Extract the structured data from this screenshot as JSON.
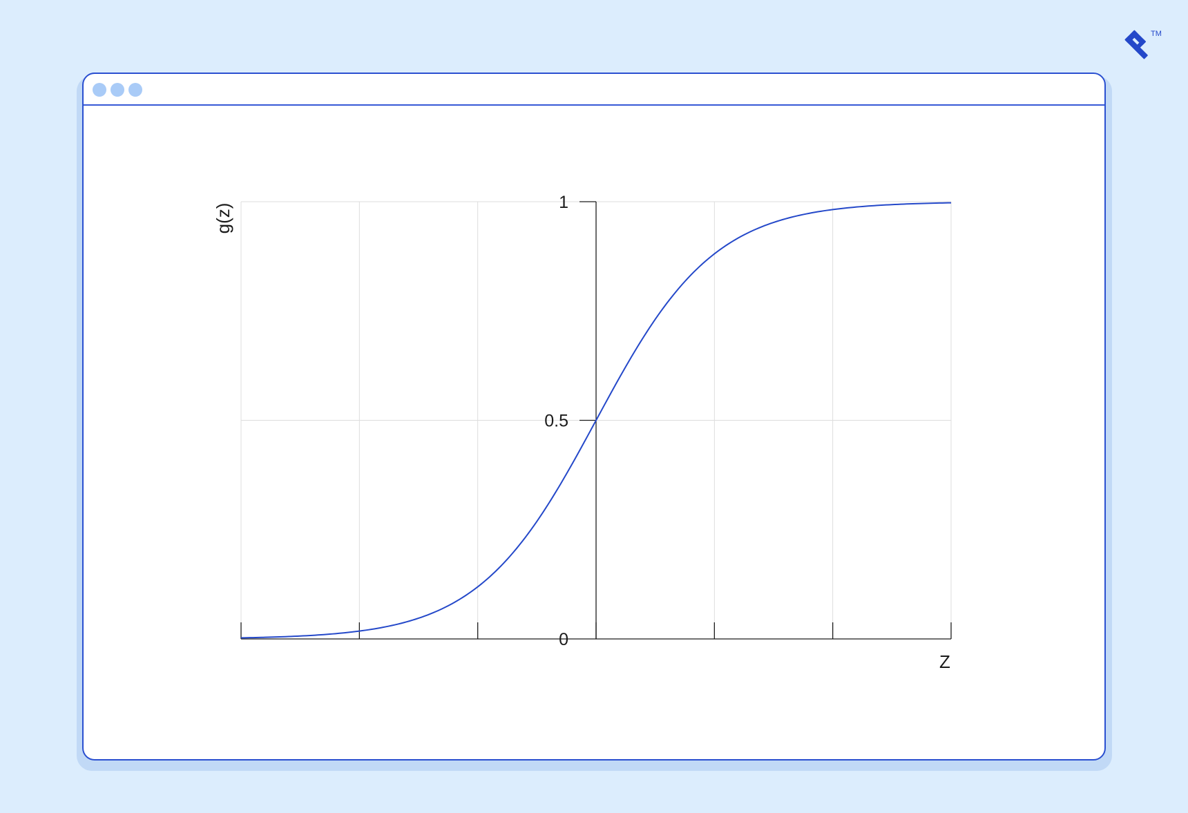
{
  "colors": {
    "background": "#dcedfd",
    "window_border": "#2a4fd0",
    "window_dots": "#a9cbf7",
    "curve": "#2448c9",
    "grid": "#dddddd",
    "axis": "#1b1b1b"
  },
  "logo": {
    "icon": "toptal-logo-icon",
    "trademark": "TM"
  },
  "window": {
    "controls": [
      "window-dot",
      "window-dot",
      "window-dot"
    ]
  },
  "chart_data": {
    "type": "line",
    "function": "sigmoid",
    "xlabel": "Z",
    "ylabel": "g(z)",
    "xlim": [
      -6,
      6
    ],
    "ylim": [
      0,
      1
    ],
    "x_ticks": [
      -6,
      -4,
      -2,
      0,
      2,
      4,
      6
    ],
    "y_ticks": [
      0,
      0.5,
      1
    ],
    "y_tick_labels": [
      "0",
      "0.5",
      "1"
    ],
    "grid": true,
    "series": [
      {
        "x": [
          -6,
          -5,
          -4,
          -3,
          -2,
          -1.5,
          -1,
          -0.5,
          0,
          0.5,
          1,
          1.5,
          2,
          3,
          4,
          5,
          6
        ],
        "y": [
          0.002,
          0.007,
          0.018,
          0.047,
          0.119,
          0.182,
          0.269,
          0.378,
          0.5,
          0.622,
          0.731,
          0.818,
          0.881,
          0.953,
          0.982,
          0.993,
          0.998
        ]
      }
    ]
  }
}
